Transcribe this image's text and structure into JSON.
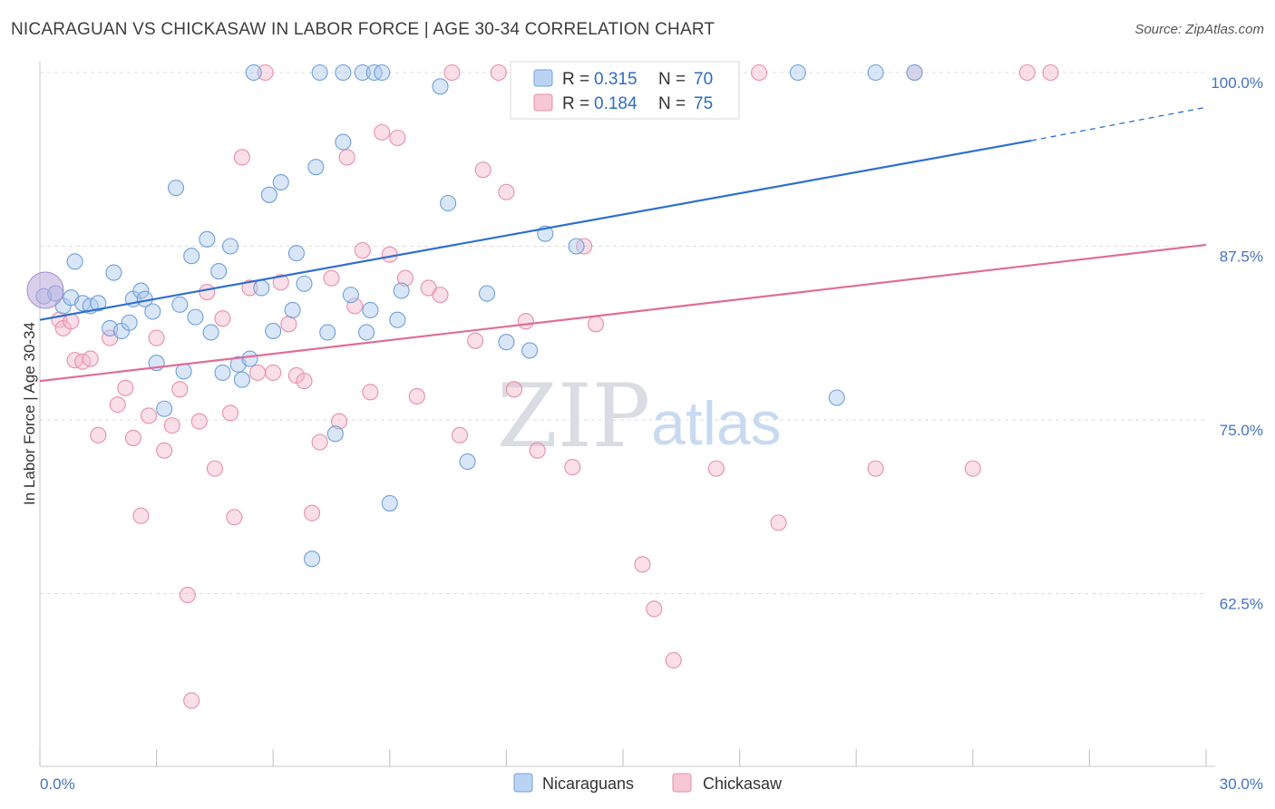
{
  "title": "NICARAGUAN VS CHICKASAW IN LABOR FORCE | AGE 30-34 CORRELATION CHART",
  "source": "Source: ZipAtlas.com",
  "watermark": {
    "zip": "ZIP",
    "atlas": "atlas"
  },
  "colors": {
    "blue_fill": "#aac8ef",
    "blue_stroke": "#6f9fdc",
    "blue_line": "#2f6fcf",
    "pink_fill": "#f5b9cc",
    "pink_stroke": "#e88eaa",
    "pink_line": "#e06d96",
    "grid": "#dcdcdc",
    "axis_text": "#4472c4"
  },
  "legend": {
    "rows": [
      {
        "r_label": "R =",
        "r_value": "0.315",
        "n_label": "N =",
        "n_value": "70"
      },
      {
        "r_label": "R =",
        "r_value": "0.184",
        "n_label": "N =",
        "n_value": "75"
      }
    ]
  },
  "chart_data": {
    "type": "scatter",
    "title": "NICARAGUAN VS CHICKASAW IN LABOR FORCE | AGE 30-34 CORRELATION CHART",
    "xlabel": "",
    "ylabel": "In Labor Force | Age 30-34",
    "xlim": [
      0,
      30
    ],
    "ylim": [
      50,
      102
    ],
    "x_tick_labels": [
      "0.0%",
      "30.0%"
    ],
    "y_ticks": [
      62.5,
      75.0,
      87.5,
      100.0
    ],
    "y_tick_labels": [
      "62.5%",
      "75.0%",
      "87.5%",
      "100.0%"
    ],
    "series": [
      {
        "name": "Nicaraguans",
        "color": "#aac8ef",
        "trend": {
          "x0": 0,
          "y0": 82.2,
          "x1": 25.5,
          "y1": 95.1,
          "dash_to_x": 30,
          "dash_to_y": 97.5
        },
        "points": [
          [
            0.1,
            83.9
          ],
          [
            0.4,
            84.1
          ],
          [
            0.6,
            83.2
          ],
          [
            0.8,
            83.8
          ],
          [
            0.9,
            86.4
          ],
          [
            1.1,
            83.4
          ],
          [
            1.3,
            83.2
          ],
          [
            1.5,
            83.4
          ],
          [
            1.9,
            85.6
          ],
          [
            1.8,
            81.6
          ],
          [
            2.1,
            81.4
          ],
          [
            2.3,
            82.0
          ],
          [
            2.4,
            83.7
          ],
          [
            2.6,
            84.3
          ],
          [
            2.7,
            83.7
          ],
          [
            2.9,
            82.8
          ],
          [
            3.0,
            79.1
          ],
          [
            3.2,
            75.8
          ],
          [
            3.5,
            91.7
          ],
          [
            3.6,
            83.3
          ],
          [
            3.7,
            78.5
          ],
          [
            3.9,
            86.8
          ],
          [
            4.0,
            82.4
          ],
          [
            4.3,
            88.0
          ],
          [
            4.4,
            81.3
          ],
          [
            4.6,
            85.7
          ],
          [
            4.7,
            78.4
          ],
          [
            4.9,
            87.5
          ],
          [
            5.1,
            79.0
          ],
          [
            5.2,
            77.9
          ],
          [
            5.4,
            79.4
          ],
          [
            5.5,
            100.0
          ],
          [
            5.7,
            84.5
          ],
          [
            5.9,
            91.2
          ],
          [
            6.0,
            81.4
          ],
          [
            6.2,
            92.1
          ],
          [
            6.5,
            82.9
          ],
          [
            6.6,
            87.0
          ],
          [
            6.8,
            84.8
          ],
          [
            7.0,
            65.0
          ],
          [
            7.1,
            93.2
          ],
          [
            7.2,
            100.0
          ],
          [
            7.4,
            81.3
          ],
          [
            7.6,
            74.0
          ],
          [
            7.8,
            95.0
          ],
          [
            7.8,
            100.0
          ],
          [
            8.0,
            84.0
          ],
          [
            8.3,
            100.0
          ],
          [
            8.4,
            81.3
          ],
          [
            8.5,
            82.9
          ],
          [
            8.6,
            100.0
          ],
          [
            8.8,
            100.0
          ],
          [
            9.0,
            69.0
          ],
          [
            9.2,
            82.2
          ],
          [
            9.3,
            84.3
          ],
          [
            10.3,
            99.0
          ],
          [
            10.5,
            90.6
          ],
          [
            11.0,
            72.0
          ],
          [
            11.5,
            84.1
          ],
          [
            12.0,
            80.6
          ],
          [
            12.6,
            80.0
          ],
          [
            13.0,
            88.4
          ],
          [
            13.2,
            100.0
          ],
          [
            13.8,
            87.5
          ],
          [
            15.5,
            100.0
          ],
          [
            17.0,
            100.0
          ],
          [
            19.5,
            100.0
          ],
          [
            20.5,
            76.6
          ],
          [
            21.5,
            100.0
          ],
          [
            22.5,
            100.0
          ]
        ]
      },
      {
        "name": "Chickasaw",
        "color": "#f5b9cc",
        "trend": {
          "x0": 0,
          "y0": 77.8,
          "x1": 30,
          "y1": 87.6
        },
        "points": [
          [
            0.5,
            82.2
          ],
          [
            0.6,
            81.6
          ],
          [
            0.8,
            82.1
          ],
          [
            0.9,
            79.3
          ],
          [
            1.1,
            79.2
          ],
          [
            1.3,
            79.4
          ],
          [
            1.5,
            73.9
          ],
          [
            1.8,
            80.9
          ],
          [
            2.0,
            76.1
          ],
          [
            2.2,
            77.3
          ],
          [
            2.4,
            73.7
          ],
          [
            2.6,
            68.1
          ],
          [
            2.8,
            75.3
          ],
          [
            3.0,
            80.9
          ],
          [
            3.2,
            72.8
          ],
          [
            3.4,
            74.6
          ],
          [
            3.6,
            77.2
          ],
          [
            3.8,
            62.4
          ],
          [
            3.9,
            54.8
          ],
          [
            4.1,
            74.9
          ],
          [
            4.3,
            84.2
          ],
          [
            4.5,
            71.5
          ],
          [
            4.7,
            82.3
          ],
          [
            4.9,
            75.5
          ],
          [
            5.0,
            68.0
          ],
          [
            5.2,
            93.9
          ],
          [
            5.4,
            84.5
          ],
          [
            5.6,
            78.4
          ],
          [
            5.8,
            100.0
          ],
          [
            6.0,
            78.4
          ],
          [
            6.2,
            84.9
          ],
          [
            6.4,
            81.9
          ],
          [
            6.6,
            78.2
          ],
          [
            6.8,
            77.8
          ],
          [
            7.0,
            68.3
          ],
          [
            7.2,
            73.4
          ],
          [
            7.5,
            85.2
          ],
          [
            7.7,
            74.9
          ],
          [
            7.9,
            93.9
          ],
          [
            8.1,
            83.2
          ],
          [
            8.3,
            87.2
          ],
          [
            8.5,
            77.0
          ],
          [
            8.8,
            95.7
          ],
          [
            9.0,
            86.9
          ],
          [
            9.2,
            95.3
          ],
          [
            9.4,
            85.2
          ],
          [
            9.7,
            76.7
          ],
          [
            10.0,
            84.5
          ],
          [
            10.3,
            84.0
          ],
          [
            10.6,
            100.0
          ],
          [
            10.8,
            73.9
          ],
          [
            11.2,
            80.7
          ],
          [
            11.4,
            93.0
          ],
          [
            11.8,
            100.0
          ],
          [
            12.0,
            91.4
          ],
          [
            12.2,
            77.2
          ],
          [
            12.5,
            82.1
          ],
          [
            12.8,
            72.8
          ],
          [
            13.4,
            100.0
          ],
          [
            13.7,
            71.6
          ],
          [
            14.0,
            87.5
          ],
          [
            14.3,
            81.9
          ],
          [
            14.9,
            100.0
          ],
          [
            15.5,
            64.6
          ],
          [
            15.8,
            61.4
          ],
          [
            16.3,
            57.7
          ],
          [
            17.0,
            100.0
          ],
          [
            17.4,
            71.5
          ],
          [
            18.5,
            100.0
          ],
          [
            19.0,
            67.6
          ],
          [
            21.5,
            71.5
          ],
          [
            22.5,
            100.0
          ],
          [
            24.0,
            71.5
          ],
          [
            25.4,
            100.0
          ],
          [
            26.0,
            100.0
          ]
        ]
      }
    ]
  },
  "bottom_legend": [
    {
      "label": "Nicaraguans"
    },
    {
      "label": "Chickasaw"
    }
  ]
}
